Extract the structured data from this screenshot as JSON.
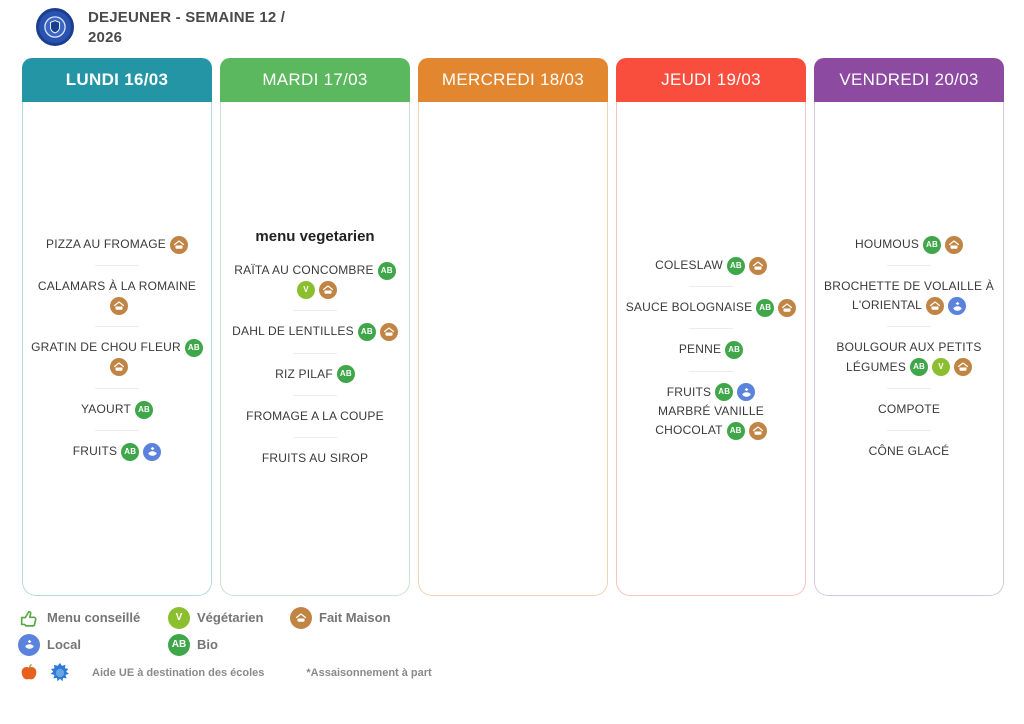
{
  "app": {
    "title_line1": "DEJEUNER - SEMAINE 12 /",
    "title_line2": "2026"
  },
  "icon_colors": {
    "bio": "#3FA74A",
    "vegetarien": "#8CBF2F",
    "fait_maison": "#C08544",
    "local": "#5B82DC",
    "menu_conseille": "#56A944",
    "apple": "#E8611C",
    "eu": "#2D7BD6"
  },
  "icon_labels": {
    "bio": "AB",
    "vegetarien": "V"
  },
  "days": [
    {
      "id": "lundi",
      "label": "LUNDI 16/03",
      "color": "#2395A4",
      "border": "#b8d8de",
      "bold": true,
      "items": [
        {
          "name": "PIZZA AU FROMAGE",
          "tags": [
            "fait_maison"
          ]
        },
        {
          "name": "CALAMARS À LA ROMAINE",
          "tags": [
            "fait_maison"
          ]
        },
        {
          "name": "GRATIN DE CHOU FLEUR",
          "tags": [
            "bio",
            "fait_maison"
          ]
        },
        {
          "name": "YAOURT",
          "tags": [
            "bio"
          ]
        },
        {
          "name": "FRUITS",
          "tags": [
            "bio",
            "local"
          ]
        }
      ]
    },
    {
      "id": "mardi",
      "label": "MARDI 17/03",
      "color": "#5CB85F",
      "border": "#c9e5cb",
      "bold": false,
      "heading": "menu vegetarien",
      "items": [
        {
          "name": "RAÏTA AU CONCOMBRE",
          "tags": [
            "bio",
            "vegetarien",
            "fait_maison"
          ]
        },
        {
          "name": "DAHL DE LENTILLES",
          "tags": [
            "bio",
            "fait_maison"
          ]
        },
        {
          "name": "RIZ PILAF",
          "tags": [
            "bio"
          ]
        },
        {
          "name": "FROMAGE A LA COUPE",
          "tags": []
        },
        {
          "name": "FRUITS AU SIROP",
          "tags": []
        }
      ]
    },
    {
      "id": "mercredi",
      "label": "MERCREDI 18/03",
      "color": "#E2872F",
      "border": "#f0d4b2",
      "bold": false,
      "items": []
    },
    {
      "id": "jeudi",
      "label": "JEUDI 19/03",
      "color": "#F94E3E",
      "border": "#f7c3bd",
      "bold": false,
      "items": [
        {
          "name": "COLESLAW",
          "tags": [
            "bio",
            "fait_maison"
          ]
        },
        {
          "name": "SAUCE BOLOGNAISE",
          "tags": [
            "bio",
            "fait_maison"
          ]
        },
        {
          "name": "PENNE",
          "tags": [
            "bio"
          ]
        },
        {
          "name": "FRUITS",
          "tags": [
            "bio",
            "local"
          ],
          "no_divider_after": true
        },
        {
          "name": "MARBRÉ VANILLE CHOCOLAT",
          "tags": [
            "bio",
            "fait_maison"
          ]
        }
      ]
    },
    {
      "id": "vendredi",
      "label": "VENDREDI 20/03",
      "color": "#8C4AA1",
      "border": "#dac6e2",
      "bold": false,
      "items": [
        {
          "name": "HOUMOUS",
          "tags": [
            "bio",
            "fait_maison"
          ]
        },
        {
          "name": "BROCHETTE DE VOLAILLE À L'ORIENTAL",
          "tags": [
            "fait_maison",
            "local"
          ]
        },
        {
          "name": "BOULGOUR AUX PETITS LÉGUMES",
          "tags": [
            "bio",
            "vegetarien",
            "fait_maison"
          ]
        },
        {
          "name": "COMPOTE",
          "tags": []
        },
        {
          "name": "CÔNE GLACÉ",
          "tags": []
        }
      ]
    }
  ],
  "legend": {
    "menu_conseille": "Menu conseillé",
    "vegetarien": "Végétarien",
    "fait_maison": "Fait Maison",
    "local": "Local",
    "bio": "Bio",
    "aide_ue": "Aide UE à destination des écoles",
    "footnote": "*Assaisonnement à part"
  }
}
